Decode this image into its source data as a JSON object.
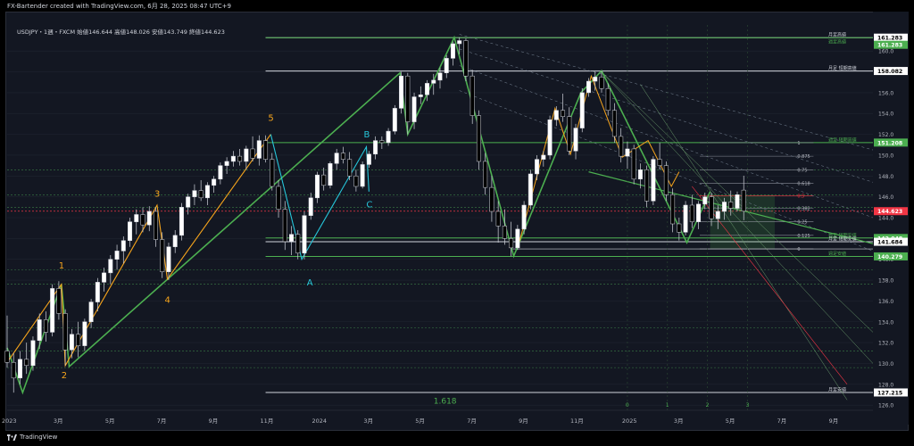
{
  "header": {
    "credit": "FX-Bartender created with TradingView.com, 6月 28, 2025 08:47 UTC+9",
    "legend": "USDJPY・1週・FXCM 始値146.644 高値148.026 安値143.749 終値144.623"
  },
  "footer": {
    "brand": "TradingView"
  },
  "colors": {
    "background": "#131722",
    "up": "#ffffff",
    "down": "#000000",
    "wave_orange": "#f7a51c",
    "wave_green": "#4caf50",
    "wave_cyan": "#26c6da",
    "fib_red": "#f23645"
  },
  "chart_data": {
    "type": "candlestick",
    "symbol": "USDJPY",
    "timeframe": "1週",
    "source": "FXCM",
    "ohlc": {
      "open": 146.644,
      "high": 148.026,
      "low": 143.749,
      "close": 144.623
    },
    "ylim": [
      125.5,
      162.5
    ],
    "y_ticks": [
      126.0,
      128.0,
      130.0,
      132.0,
      134.0,
      136.0,
      138.0,
      140.0,
      142.0,
      144.0,
      146.0,
      148.0,
      150.0,
      152.0,
      154.0,
      156.0,
      158.0,
      160.0
    ],
    "x_ticks": [
      {
        "label": "2023",
        "t": 0
      },
      {
        "label": "3月",
        "t": 2
      },
      {
        "label": "5月",
        "t": 4
      },
      {
        "label": "7月",
        "t": 6
      },
      {
        "label": "9月",
        "t": 8
      },
      {
        "label": "11月",
        "t": 10
      },
      {
        "label": "2024",
        "t": 12
      },
      {
        "label": "3月",
        "t": 14
      },
      {
        "label": "5月",
        "t": 16
      },
      {
        "label": "7月",
        "t": 18
      },
      {
        "label": "9月",
        "t": 20
      },
      {
        "label": "11月",
        "t": 22
      },
      {
        "label": "2025",
        "t": 24
      },
      {
        "label": "3月",
        "t": 26
      },
      {
        "label": "5月",
        "t": 28
      },
      {
        "label": "7月",
        "t": 30
      },
      {
        "label": "9月",
        "t": 32
      }
    ],
    "price_levels": [
      {
        "price": 161.283,
        "label": "月足高値",
        "tag": "161.283",
        "style": "solid",
        "color": "#d1d4dc",
        "badge": "#ffffff"
      },
      {
        "price": 161.283,
        "label": "週足高値",
        "tag": "161.283",
        "style": "solid",
        "color": "#4caf50",
        "badge": "#4caf50",
        "label_offset": 8
      },
      {
        "price": 158.082,
        "label": "月足 短期高値",
        "tag": "158.082",
        "style": "solid",
        "color": "#d1d4dc",
        "badge": "#ffffff"
      },
      {
        "price": 151.208,
        "label": "週足 短期高値",
        "tag": "151.208",
        "style": "solid",
        "color": "#4caf50",
        "badge": "#4caf50"
      },
      {
        "price": 144.623,
        "label": "",
        "tag": "144.623",
        "style": "dotted",
        "color": "#f23645",
        "badge": "#f23645"
      },
      {
        "price": 142.048,
        "label": "週足 短期安値",
        "tag": "142.048",
        "style": "solid",
        "color": "#4caf50",
        "badge": "#4caf50"
      },
      {
        "price": 141.684,
        "label": "月足 短期安値",
        "tag": "141.684",
        "style": "solid",
        "color": "#d1d4dc",
        "badge": "#ffffff"
      },
      {
        "price": 140.279,
        "label": "週足安値",
        "tag": "140.279",
        "style": "solid",
        "color": "#4caf50",
        "badge": "#4caf50"
      },
      {
        "price": 127.215,
        "label": "月足安値",
        "tag": "127.215",
        "style": "solid",
        "color": "#d1d4dc",
        "badge": "#ffffff"
      }
    ],
    "fib_retracement": {
      "levels": [
        {
          "ratio": "1",
          "price": 151.2
        },
        {
          "ratio": "0.875",
          "price": 149.9
        },
        {
          "ratio": "0.75",
          "price": 148.6
        },
        {
          "ratio": "0.618",
          "price": 147.3
        },
        {
          "ratio": "0.5",
          "price": 146.1
        },
        {
          "ratio": "0.382",
          "price": 144.9
        },
        {
          "ratio": "0.25",
          "price": 143.6
        },
        {
          "ratio": "0.125",
          "price": 142.3
        },
        {
          "ratio": "0",
          "price": 141.0
        }
      ],
      "extension_label": "1.618",
      "time_labels": [
        "0",
        "1",
        "2",
        "3"
      ]
    },
    "wave_labels": [
      {
        "text": "1",
        "t": 2.1,
        "price": 139.1,
        "color": "#f7a51c"
      },
      {
        "text": "2",
        "t": 2.2,
        "price": 128.6,
        "color": "#f7a51c"
      },
      {
        "text": "3",
        "t": 5.8,
        "price": 146.0,
        "color": "#f7a51c"
      },
      {
        "text": "4",
        "t": 6.2,
        "price": 135.8,
        "color": "#f7a51c"
      },
      {
        "text": "5",
        "t": 10.2,
        "price": 153.3,
        "color": "#f7a51c"
      },
      {
        "text": "A",
        "t": 11.7,
        "price": 137.5,
        "color": "#26c6da"
      },
      {
        "text": "B",
        "t": 13.9,
        "price": 151.7,
        "color": "#26c6da"
      },
      {
        "text": "C",
        "t": 14.0,
        "price": 145.0,
        "color": "#26c6da"
      }
    ],
    "candles": [
      {
        "t": 0.0,
        "o": 131.2,
        "h": 134.6,
        "l": 129.6,
        "c": 130.1
      },
      {
        "t": 0.25,
        "o": 130.1,
        "h": 131.0,
        "l": 127.2,
        "c": 128.6
      },
      {
        "t": 0.5,
        "o": 128.6,
        "h": 131.2,
        "l": 128.0,
        "c": 130.4
      },
      {
        "t": 0.75,
        "o": 130.4,
        "h": 132.0,
        "l": 129.0,
        "c": 129.8
      },
      {
        "t": 1.0,
        "o": 129.8,
        "h": 132.6,
        "l": 129.3,
        "c": 132.2
      },
      {
        "t": 1.25,
        "o": 132.2,
        "h": 134.8,
        "l": 131.4,
        "c": 134.2
      },
      {
        "t": 1.5,
        "o": 134.2,
        "h": 135.0,
        "l": 132.1,
        "c": 133.0
      },
      {
        "t": 1.75,
        "o": 133.0,
        "h": 137.6,
        "l": 132.6,
        "c": 137.2
      },
      {
        "t": 2.0,
        "o": 137.2,
        "h": 137.9,
        "l": 134.2,
        "c": 134.8
      },
      {
        "t": 2.25,
        "o": 134.8,
        "h": 135.2,
        "l": 129.8,
        "c": 131.3
      },
      {
        "t": 2.5,
        "o": 131.3,
        "h": 133.3,
        "l": 130.5,
        "c": 132.8
      },
      {
        "t": 2.75,
        "o": 132.8,
        "h": 134.0,
        "l": 130.6,
        "c": 131.7
      },
      {
        "t": 3.0,
        "o": 131.7,
        "h": 134.3,
        "l": 131.2,
        "c": 134.0
      },
      {
        "t": 3.25,
        "o": 134.0,
        "h": 136.2,
        "l": 133.4,
        "c": 135.9
      },
      {
        "t": 3.5,
        "o": 135.9,
        "h": 138.2,
        "l": 135.0,
        "c": 137.8
      },
      {
        "t": 3.75,
        "o": 137.8,
        "h": 139.2,
        "l": 136.9,
        "c": 138.7
      },
      {
        "t": 4.0,
        "o": 138.7,
        "h": 140.4,
        "l": 137.6,
        "c": 140.0
      },
      {
        "t": 4.25,
        "o": 140.0,
        "h": 141.4,
        "l": 139.0,
        "c": 140.8
      },
      {
        "t": 4.5,
        "o": 140.8,
        "h": 142.2,
        "l": 139.6,
        "c": 141.8
      },
      {
        "t": 4.75,
        "o": 141.8,
        "h": 144.0,
        "l": 141.2,
        "c": 143.6
      },
      {
        "t": 5.0,
        "o": 143.6,
        "h": 144.8,
        "l": 142.4,
        "c": 144.3
      },
      {
        "t": 5.25,
        "o": 144.3,
        "h": 145.0,
        "l": 142.6,
        "c": 143.3
      },
      {
        "t": 5.5,
        "o": 143.3,
        "h": 145.1,
        "l": 142.7,
        "c": 144.6
      },
      {
        "t": 5.75,
        "o": 144.6,
        "h": 145.0,
        "l": 141.2,
        "c": 141.9
      },
      {
        "t": 6.0,
        "o": 141.9,
        "h": 142.6,
        "l": 138.2,
        "c": 138.8
      },
      {
        "t": 6.25,
        "o": 138.8,
        "h": 141.6,
        "l": 138.0,
        "c": 141.2
      },
      {
        "t": 6.5,
        "o": 141.2,
        "h": 142.8,
        "l": 140.6,
        "c": 142.3
      },
      {
        "t": 6.75,
        "o": 142.3,
        "h": 145.4,
        "l": 141.8,
        "c": 145.0
      },
      {
        "t": 7.0,
        "o": 145.0,
        "h": 146.3,
        "l": 144.3,
        "c": 146.0
      },
      {
        "t": 7.25,
        "o": 146.0,
        "h": 147.2,
        "l": 145.2,
        "c": 146.6
      },
      {
        "t": 7.5,
        "o": 146.6,
        "h": 147.6,
        "l": 145.6,
        "c": 145.9
      },
      {
        "t": 7.75,
        "o": 145.9,
        "h": 147.4,
        "l": 145.2,
        "c": 147.1
      },
      {
        "t": 8.0,
        "o": 147.1,
        "h": 148.0,
        "l": 146.4,
        "c": 147.7
      },
      {
        "t": 8.25,
        "o": 147.7,
        "h": 149.3,
        "l": 147.2,
        "c": 149.0
      },
      {
        "t": 8.5,
        "o": 149.0,
        "h": 149.8,
        "l": 148.2,
        "c": 149.4
      },
      {
        "t": 8.75,
        "o": 149.4,
        "h": 150.4,
        "l": 148.9,
        "c": 149.9
      },
      {
        "t": 9.0,
        "o": 149.9,
        "h": 150.6,
        "l": 149.0,
        "c": 149.4
      },
      {
        "t": 9.25,
        "o": 149.4,
        "h": 150.9,
        "l": 148.6,
        "c": 150.6
      },
      {
        "t": 9.5,
        "o": 150.6,
        "h": 151.8,
        "l": 149.4,
        "c": 149.7
      },
      {
        "t": 9.75,
        "o": 149.7,
        "h": 151.9,
        "l": 149.0,
        "c": 151.4
      },
      {
        "t": 10.0,
        "o": 151.4,
        "h": 151.9,
        "l": 149.3,
        "c": 149.6
      },
      {
        "t": 10.25,
        "o": 149.6,
        "h": 150.2,
        "l": 146.6,
        "c": 147.0
      },
      {
        "t": 10.5,
        "o": 147.0,
        "h": 147.6,
        "l": 144.0,
        "c": 144.8
      },
      {
        "t": 10.75,
        "o": 144.8,
        "h": 145.6,
        "l": 140.9,
        "c": 141.7
      },
      {
        "t": 11.0,
        "o": 141.7,
        "h": 143.2,
        "l": 140.4,
        "c": 142.4
      },
      {
        "t": 11.25,
        "o": 142.4,
        "h": 142.8,
        "l": 140.0,
        "c": 140.6
      },
      {
        "t": 11.5,
        "o": 140.6,
        "h": 144.6,
        "l": 140.0,
        "c": 144.2
      },
      {
        "t": 11.75,
        "o": 144.2,
        "h": 146.4,
        "l": 143.8,
        "c": 145.9
      },
      {
        "t": 12.0,
        "o": 145.9,
        "h": 148.4,
        "l": 145.4,
        "c": 148.1
      },
      {
        "t": 12.25,
        "o": 148.1,
        "h": 148.8,
        "l": 146.6,
        "c": 147.1
      },
      {
        "t": 12.5,
        "o": 147.1,
        "h": 149.4,
        "l": 146.8,
        "c": 149.2
      },
      {
        "t": 12.75,
        "o": 149.2,
        "h": 150.6,
        "l": 148.6,
        "c": 150.2
      },
      {
        "t": 13.0,
        "o": 150.2,
        "h": 150.8,
        "l": 149.2,
        "c": 149.6
      },
      {
        "t": 13.25,
        "o": 149.6,
        "h": 150.3,
        "l": 147.6,
        "c": 148.0
      },
      {
        "t": 13.5,
        "o": 148.0,
        "h": 148.6,
        "l": 146.5,
        "c": 147.0
      },
      {
        "t": 13.75,
        "o": 147.0,
        "h": 149.4,
        "l": 146.8,
        "c": 149.1
      },
      {
        "t": 14.0,
        "o": 149.1,
        "h": 150.4,
        "l": 148.8,
        "c": 150.1
      },
      {
        "t": 14.25,
        "o": 150.1,
        "h": 151.8,
        "l": 149.6,
        "c": 151.4
      },
      {
        "t": 14.5,
        "o": 151.4,
        "h": 151.8,
        "l": 150.6,
        "c": 151.2
      },
      {
        "t": 14.75,
        "o": 151.2,
        "h": 152.6,
        "l": 150.9,
        "c": 152.3
      },
      {
        "t": 15.0,
        "o": 152.3,
        "h": 154.8,
        "l": 152.0,
        "c": 154.5
      },
      {
        "t": 15.25,
        "o": 154.5,
        "h": 158.0,
        "l": 154.0,
        "c": 157.6
      },
      {
        "t": 15.5,
        "o": 157.6,
        "h": 157.9,
        "l": 152.0,
        "c": 153.2
      },
      {
        "t": 15.75,
        "o": 153.2,
        "h": 156.0,
        "l": 152.5,
        "c": 155.6
      },
      {
        "t": 16.0,
        "o": 155.6,
        "h": 156.6,
        "l": 154.9,
        "c": 155.8
      },
      {
        "t": 16.25,
        "o": 155.8,
        "h": 157.2,
        "l": 155.2,
        "c": 156.9
      },
      {
        "t": 16.5,
        "o": 156.9,
        "h": 157.8,
        "l": 155.8,
        "c": 157.2
      },
      {
        "t": 16.75,
        "o": 157.2,
        "h": 158.4,
        "l": 156.4,
        "c": 157.9
      },
      {
        "t": 17.0,
        "o": 157.9,
        "h": 159.6,
        "l": 157.4,
        "c": 159.3
      },
      {
        "t": 17.25,
        "o": 159.3,
        "h": 160.9,
        "l": 158.6,
        "c": 160.7
      },
      {
        "t": 17.5,
        "o": 160.7,
        "h": 161.3,
        "l": 159.7,
        "c": 161.0
      },
      {
        "t": 17.75,
        "o": 161.0,
        "h": 161.2,
        "l": 157.1,
        "c": 157.6
      },
      {
        "t": 18.0,
        "o": 157.6,
        "h": 158.2,
        "l": 153.0,
        "c": 153.8
      },
      {
        "t": 18.25,
        "o": 153.8,
        "h": 154.3,
        "l": 148.6,
        "c": 149.4
      },
      {
        "t": 18.5,
        "o": 149.4,
        "h": 150.2,
        "l": 146.2,
        "c": 146.9
      },
      {
        "t": 18.75,
        "o": 146.9,
        "h": 148.0,
        "l": 143.6,
        "c": 144.6
      },
      {
        "t": 19.0,
        "o": 144.6,
        "h": 145.6,
        "l": 141.6,
        "c": 143.2
      },
      {
        "t": 19.25,
        "o": 143.2,
        "h": 144.8,
        "l": 141.4,
        "c": 142.0
      },
      {
        "t": 19.5,
        "o": 142.0,
        "h": 143.6,
        "l": 140.3,
        "c": 141.1
      },
      {
        "t": 19.75,
        "o": 141.1,
        "h": 143.3,
        "l": 140.9,
        "c": 142.9
      },
      {
        "t": 20.0,
        "o": 142.9,
        "h": 145.6,
        "l": 142.4,
        "c": 145.2
      },
      {
        "t": 20.25,
        "o": 145.2,
        "h": 148.6,
        "l": 144.8,
        "c": 148.2
      },
      {
        "t": 20.5,
        "o": 148.2,
        "h": 150.0,
        "l": 147.6,
        "c": 149.6
      },
      {
        "t": 20.75,
        "o": 149.6,
        "h": 150.4,
        "l": 148.9,
        "c": 150.0
      },
      {
        "t": 21.0,
        "o": 150.0,
        "h": 153.8,
        "l": 149.6,
        "c": 153.4
      },
      {
        "t": 21.25,
        "o": 153.4,
        "h": 154.7,
        "l": 152.8,
        "c": 154.3
      },
      {
        "t": 21.5,
        "o": 154.3,
        "h": 155.9,
        "l": 153.2,
        "c": 153.7
      },
      {
        "t": 21.75,
        "o": 153.7,
        "h": 154.6,
        "l": 150.0,
        "c": 150.4
      },
      {
        "t": 22.0,
        "o": 150.4,
        "h": 153.0,
        "l": 149.6,
        "c": 152.6
      },
      {
        "t": 22.25,
        "o": 152.6,
        "h": 156.4,
        "l": 152.2,
        "c": 156.0
      },
      {
        "t": 22.5,
        "o": 156.0,
        "h": 157.4,
        "l": 155.6,
        "c": 157.1
      },
      {
        "t": 22.75,
        "o": 157.1,
        "h": 158.0,
        "l": 156.2,
        "c": 157.5
      },
      {
        "t": 23.0,
        "o": 157.5,
        "h": 158.1,
        "l": 156.0,
        "c": 156.4
      },
      {
        "t": 23.25,
        "o": 156.4,
        "h": 156.9,
        "l": 153.8,
        "c": 154.3
      },
      {
        "t": 23.5,
        "o": 154.3,
        "h": 155.0,
        "l": 151.2,
        "c": 151.8
      },
      {
        "t": 23.75,
        "o": 151.8,
        "h": 152.6,
        "l": 149.3,
        "c": 149.9
      },
      {
        "t": 24.0,
        "o": 149.9,
        "h": 151.3,
        "l": 148.7,
        "c": 150.6
      },
      {
        "t": 24.25,
        "o": 150.6,
        "h": 151.0,
        "l": 147.2,
        "c": 147.7
      },
      {
        "t": 24.5,
        "o": 147.7,
        "h": 149.2,
        "l": 146.8,
        "c": 148.6
      },
      {
        "t": 24.75,
        "o": 148.6,
        "h": 149.0,
        "l": 145.0,
        "c": 145.6
      },
      {
        "t": 25.0,
        "o": 145.6,
        "h": 149.9,
        "l": 145.2,
        "c": 149.6
      },
      {
        "t": 25.25,
        "o": 149.6,
        "h": 151.2,
        "l": 148.6,
        "c": 149.0
      },
      {
        "t": 25.5,
        "o": 149.0,
        "h": 149.4,
        "l": 145.6,
        "c": 146.2
      },
      {
        "t": 25.75,
        "o": 146.2,
        "h": 146.8,
        "l": 142.6,
        "c": 143.4
      },
      {
        "t": 26.0,
        "o": 143.4,
        "h": 144.0,
        "l": 141.8,
        "c": 142.6
      },
      {
        "t": 26.25,
        "o": 142.6,
        "h": 145.6,
        "l": 142.3,
        "c": 145.2
      },
      {
        "t": 26.5,
        "o": 145.2,
        "h": 146.2,
        "l": 143.0,
        "c": 143.6
      },
      {
        "t": 26.75,
        "o": 143.6,
        "h": 145.6,
        "l": 142.9,
        "c": 145.3
      },
      {
        "t": 27.0,
        "o": 145.3,
        "h": 146.4,
        "l": 144.8,
        "c": 146.0
      },
      {
        "t": 27.25,
        "o": 146.0,
        "h": 146.4,
        "l": 143.2,
        "c": 143.9
      },
      {
        "t": 27.5,
        "o": 143.9,
        "h": 145.2,
        "l": 142.9,
        "c": 144.6
      },
      {
        "t": 27.75,
        "o": 144.6,
        "h": 145.9,
        "l": 143.8,
        "c": 145.5
      },
      {
        "t": 28.0,
        "o": 145.5,
        "h": 146.6,
        "l": 144.2,
        "c": 144.9
      },
      {
        "t": 28.25,
        "o": 144.9,
        "h": 146.5,
        "l": 144.6,
        "c": 146.2
      },
      {
        "t": 28.5,
        "o": 146.644,
        "h": 148.026,
        "l": 143.749,
        "c": 144.623
      }
    ]
  }
}
